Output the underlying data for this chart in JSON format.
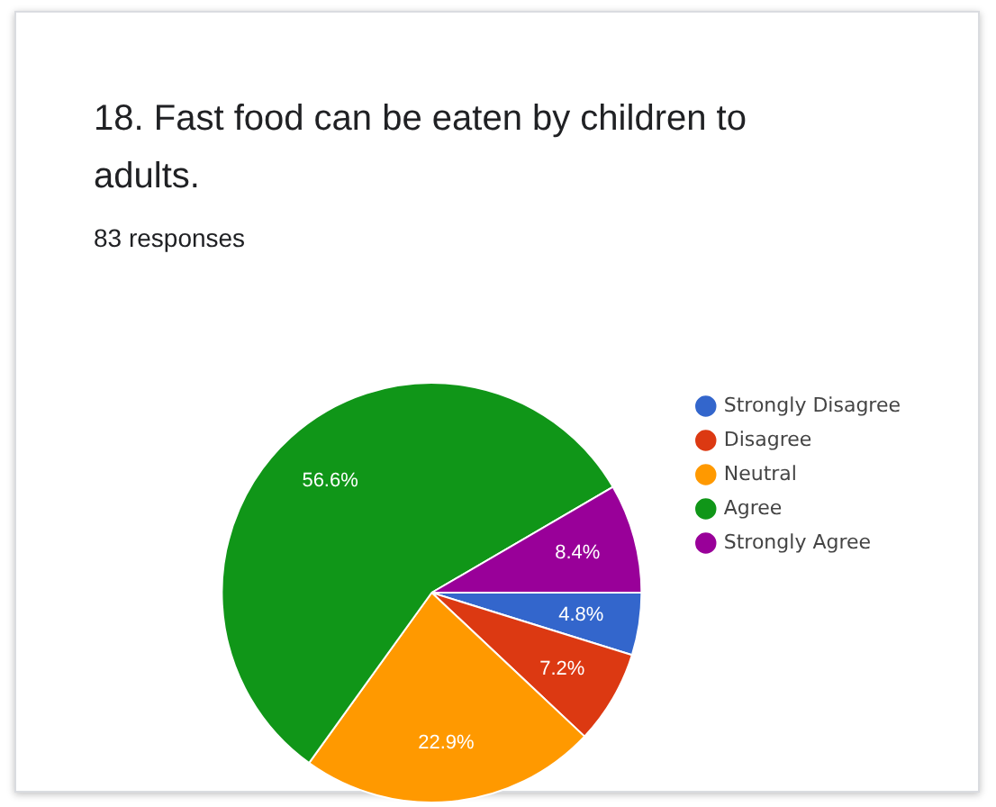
{
  "chart_data": {
    "type": "pie",
    "title": "18. Fast food can be eaten by children to adults.",
    "subtitle": "83 responses",
    "categories": [
      "Strongly Disagree",
      "Disagree",
      "Neutral",
      "Agree",
      "Strongly Agree"
    ],
    "values": [
      4.8,
      7.2,
      22.9,
      56.6,
      8.4
    ],
    "colors": [
      "#3366cc",
      "#dc3912",
      "#ff9900",
      "#109618",
      "#990099"
    ],
    "value_labels": [
      "4.8%",
      "7.2%",
      "22.9%",
      "56.6%",
      "8.4%"
    ],
    "legend": "right"
  }
}
